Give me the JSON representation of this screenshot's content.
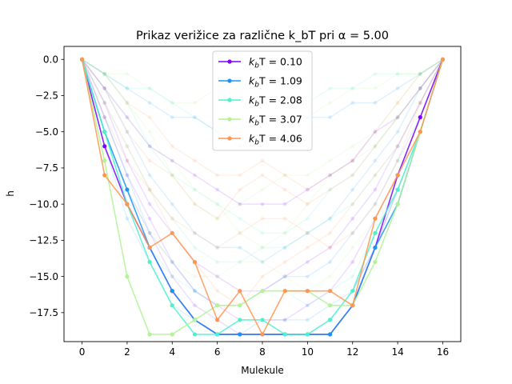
{
  "chart_data": {
    "type": "line",
    "title": "Prikaz verižice za različne",
    "title_math": "k_bT pri α = 5.00",
    "xlabel": "Mulekule",
    "ylabel": "h",
    "xlim": [
      -0.8,
      16.8
    ],
    "ylim": [
      -19.5,
      0.9
    ],
    "xticks": [
      0,
      2,
      4,
      6,
      8,
      10,
      12,
      14,
      16
    ],
    "yticks": [
      0.0,
      -2.5,
      -5.0,
      -7.5,
      -10.0,
      -12.5,
      -15.0,
      -17.5
    ],
    "ytick_labels": [
      "0.0",
      "−2.5",
      "−5.0",
      "−7.5",
      "−10.0",
      "−12.5",
      "−15.0",
      "−17.5"
    ],
    "grid": false,
    "legend_position": "top-center",
    "x": [
      0,
      1,
      2,
      3,
      4,
      5,
      6,
      7,
      8,
      9,
      10,
      11,
      12,
      13,
      14,
      15,
      16
    ],
    "series": [
      {
        "name": "k_bT = 0.10",
        "legend_prefix": "k",
        "legend_sub": "b",
        "legend_suffix": "T = 0.10",
        "color": "#7f00ff",
        "values": [
          0,
          -6,
          -10,
          -13,
          -16,
          -18,
          -19,
          -19,
          -19,
          -19,
          -19,
          -19,
          -17,
          -13,
          -8,
          -4,
          0
        ]
      },
      {
        "name": "k_bT = 1.09",
        "legend_prefix": "k",
        "legend_sub": "b",
        "legend_suffix": "T = 1.09",
        "color": "#1996f3",
        "values": [
          0,
          -5,
          -9,
          -13,
          -16,
          -18,
          -19,
          -19,
          -19,
          -19,
          -19,
          -19,
          -17,
          -13,
          -10,
          -5,
          0
        ]
      },
      {
        "name": "k_bT = 2.08",
        "legend_prefix": "k",
        "legend_sub": "b",
        "legend_suffix": "T = 2.08",
        "color": "#4cf2ce",
        "values": [
          0,
          -5,
          -10,
          -14,
          -17,
          -19,
          -19,
          -18,
          -18,
          -19,
          -19,
          -18,
          -16,
          -12,
          -9,
          -5,
          0
        ]
      },
      {
        "name": "k_bT = 3.07",
        "legend_prefix": "k",
        "legend_sub": "b",
        "legend_suffix": "T = 3.07",
        "color": "#b2f396",
        "values": [
          0,
          -7,
          -15,
          -19,
          -19,
          -18,
          -17,
          -17,
          -16,
          -16,
          -16,
          -17,
          -17,
          -14,
          -10,
          -5,
          0
        ]
      },
      {
        "name": "k_bT = 4.06",
        "legend_prefix": "k",
        "legend_sub": "b",
        "legend_suffix": "T = 4.06",
        "color": "#ff9650",
        "values": [
          0,
          -8,
          -10,
          -13,
          -12,
          -14,
          -18,
          -16,
          -19,
          -16,
          -16,
          -16,
          -17,
          -11,
          -8,
          -5,
          0
        ]
      }
    ],
    "background_trajectories": [
      {
        "color": "#7f00ff",
        "values": [
          0,
          -5,
          -9,
          -12,
          -15,
          -17,
          -18,
          -19,
          -19,
          -19,
          -19,
          -18,
          -16,
          -13,
          -9,
          -5,
          0
        ]
      },
      {
        "color": "#7f00ff",
        "values": [
          0,
          -4,
          -8,
          -11,
          -14,
          -16,
          -17,
          -18,
          -18,
          -18,
          -17,
          -16,
          -14,
          -11,
          -8,
          -4,
          0
        ]
      },
      {
        "color": "#7f00ff",
        "values": [
          0,
          -3,
          -7,
          -10,
          -12,
          -14,
          -15,
          -16,
          -16,
          -15,
          -14,
          -13,
          -11,
          -9,
          -6,
          -3,
          0
        ]
      },
      {
        "color": "#1996f3",
        "values": [
          0,
          -6,
          -11,
          -14,
          -17,
          -18,
          -19,
          -19,
          -18,
          -18,
          -18,
          -17,
          -16,
          -13,
          -9,
          -5,
          0
        ]
      },
      {
        "color": "#1996f3",
        "values": [
          0,
          -4,
          -8,
          -12,
          -14,
          -16,
          -17,
          -17,
          -16,
          -15,
          -15,
          -14,
          -12,
          -10,
          -7,
          -4,
          0
        ]
      },
      {
        "color": "#1996f3",
        "values": [
          0,
          -2,
          -5,
          -8,
          -10,
          -12,
          -13,
          -13,
          -14,
          -13,
          -12,
          -11,
          -9,
          -7,
          -5,
          -2,
          0
        ]
      },
      {
        "color": "#4cf2ce",
        "values": [
          0,
          -6,
          -10,
          -13,
          -15,
          -16,
          -17,
          -17,
          -16,
          -16,
          -17,
          -16,
          -15,
          -12,
          -8,
          -4,
          0
        ]
      },
      {
        "color": "#4cf2ce",
        "values": [
          0,
          -3,
          -6,
          -9,
          -11,
          -13,
          -14,
          -14,
          -13,
          -13,
          -12,
          -11,
          -10,
          -8,
          -6,
          -3,
          0
        ]
      },
      {
        "color": "#4cf2ce",
        "values": [
          0,
          -1,
          -3,
          -6,
          -8,
          -9,
          -10,
          -11,
          -12,
          -12,
          -11,
          -9,
          -8,
          -6,
          -4,
          -2,
          0
        ]
      },
      {
        "color": "#b2f396",
        "values": [
          0,
          -5,
          -9,
          -12,
          -14,
          -15,
          -15,
          -14,
          -14,
          -15,
          -16,
          -15,
          -13,
          -11,
          -8,
          -4,
          0
        ]
      },
      {
        "color": "#b2f396",
        "values": [
          0,
          -2,
          -4,
          -6,
          -7,
          -9,
          -10,
          -12,
          -13,
          -12,
          -10,
          -8,
          -7,
          -6,
          -4,
          -2,
          0
        ]
      },
      {
        "color": "#b2f396",
        "values": [
          0,
          -1,
          -3,
          -5,
          -8,
          -10,
          -11,
          -10,
          -9,
          -8,
          -8,
          -7,
          -6,
          -5,
          -3,
          -1,
          0
        ]
      },
      {
        "color": "#ff9650",
        "values": [
          0,
          -4,
          -7,
          -9,
          -11,
          -12,
          -13,
          -12,
          -11,
          -11,
          -12,
          -13,
          -12,
          -10,
          -7,
          -3,
          0
        ]
      },
      {
        "color": "#ff9650",
        "values": [
          0,
          -2,
          -5,
          -7,
          -8,
          -10,
          -11,
          -9,
          -8,
          -9,
          -10,
          -9,
          -8,
          -6,
          -4,
          -2,
          0
        ]
      },
      {
        "color": "#ff9650",
        "values": [
          0,
          -1,
          -3,
          -4,
          -6,
          -7,
          -8,
          -8,
          -7,
          -8,
          -9,
          -8,
          -7,
          -5,
          -3,
          -1,
          0
        ]
      },
      {
        "color": "#7f00ff",
        "values": [
          0,
          -2,
          -4,
          -6,
          -7,
          -8,
          -9,
          -10,
          -10,
          -10,
          -9,
          -8,
          -7,
          -5,
          -4,
          -2,
          0
        ]
      },
      {
        "color": "#1996f3",
        "values": [
          0,
          -1,
          -2,
          -3,
          -4,
          -4,
          -5,
          -6,
          -6,
          -5,
          -4,
          -4,
          -3,
          -3,
          -2,
          -1,
          0
        ]
      },
      {
        "color": "#b2f396",
        "values": [
          0,
          -1,
          -1,
          -2,
          -3,
          -3,
          -2,
          -1,
          -2,
          -3,
          -4,
          -3,
          -2,
          -2,
          -1,
          -1,
          0
        ]
      },
      {
        "color": "#4cf2ce",
        "values": [
          0,
          -1,
          -2,
          -2,
          -3,
          -4,
          -5,
          -5,
          -4,
          -3,
          -3,
          -2,
          -2,
          -1,
          -1,
          -1,
          0
        ]
      },
      {
        "color": "#ff9650",
        "values": [
          0,
          -3,
          -6,
          -9,
          -12,
          -14,
          -16,
          -17,
          -15,
          -14,
          -13,
          -12,
          -10,
          -8,
          -6,
          -3,
          0
        ]
      }
    ]
  }
}
